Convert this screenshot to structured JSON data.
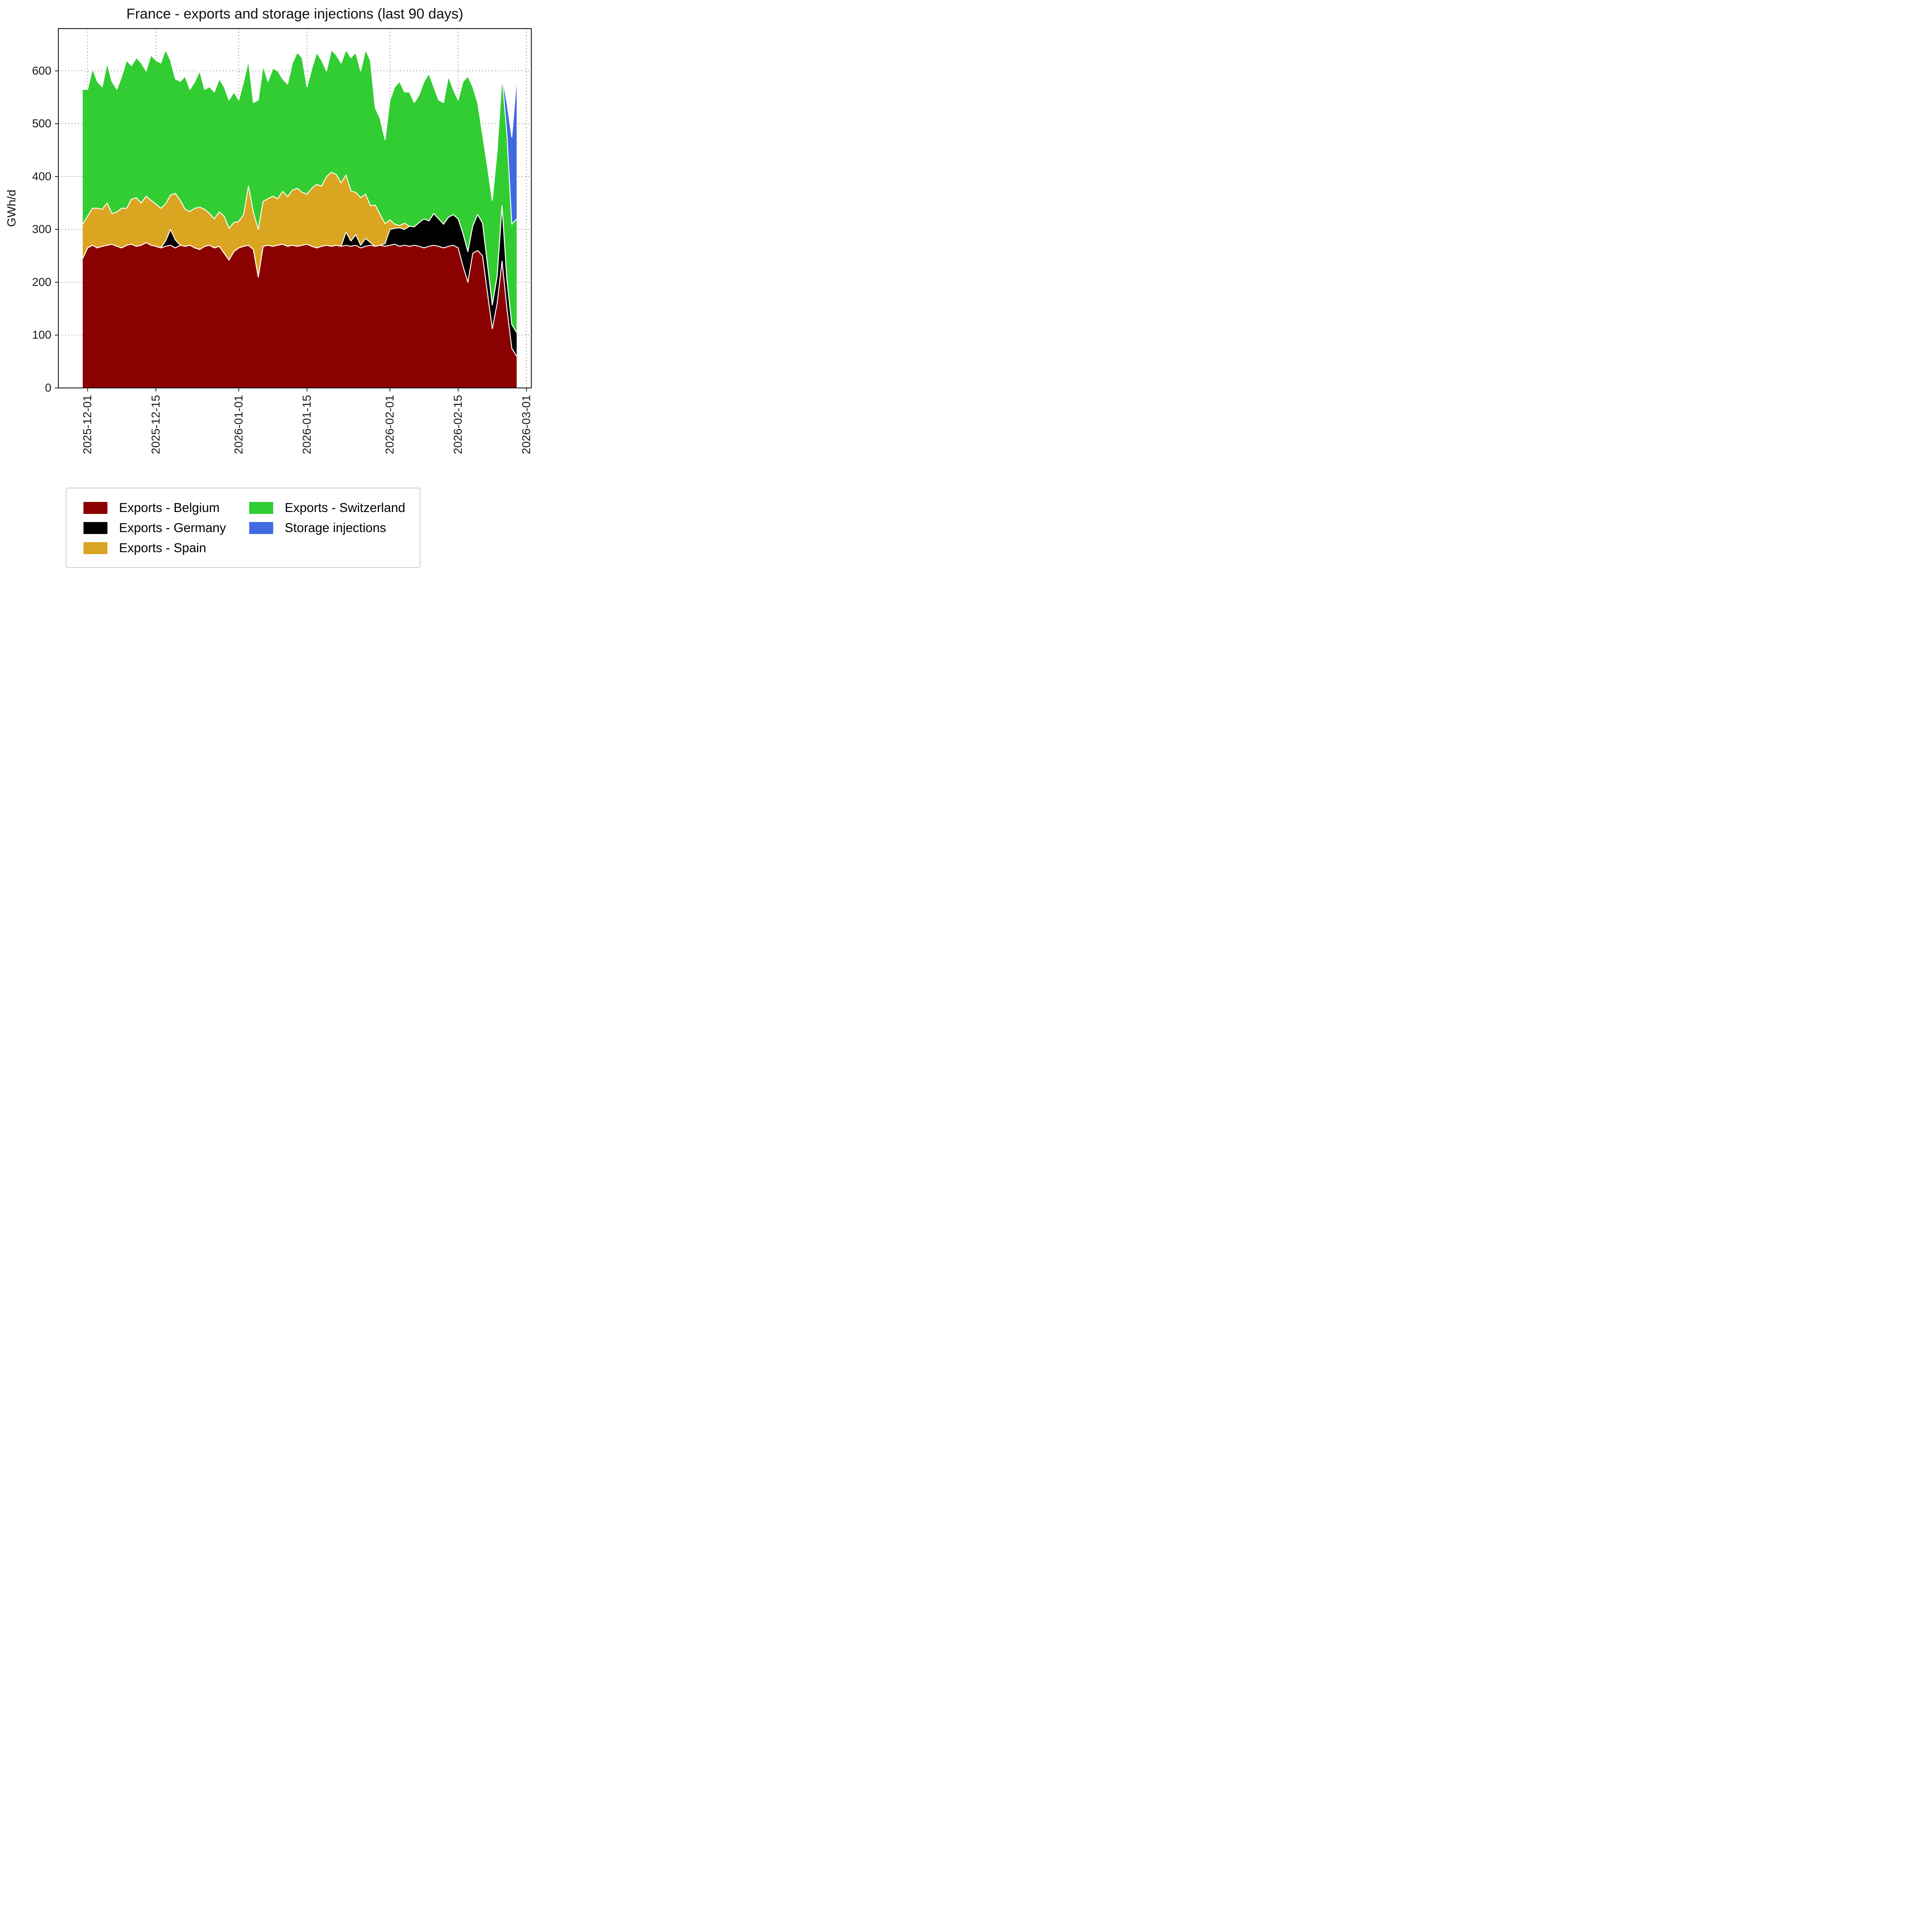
{
  "chart_data": {
    "type": "area",
    "stacked": true,
    "title": "France - exports and storage injections (last 90 days)",
    "ylabel": "GWh/d",
    "xlabel": "",
    "grid": true,
    "legend_position": "bottom",
    "ylim": [
      0,
      680
    ],
    "yticks": [
      0,
      100,
      200,
      300,
      400,
      500,
      600
    ],
    "xticks": [
      "2025-12-01",
      "2025-12-15",
      "2026-01-01",
      "2026-01-15",
      "2026-02-01",
      "2026-02-15",
      "2026-03-01"
    ],
    "x_domain_days": [
      -5,
      92
    ],
    "x": [
      "2025-11-30",
      "2025-12-01",
      "2025-12-02",
      "2025-12-03",
      "2025-12-04",
      "2025-12-05",
      "2025-12-06",
      "2025-12-07",
      "2025-12-08",
      "2025-12-09",
      "2025-12-10",
      "2025-12-11",
      "2025-12-12",
      "2025-12-13",
      "2025-12-14",
      "2025-12-15",
      "2025-12-16",
      "2025-12-17",
      "2025-12-18",
      "2025-12-19",
      "2025-12-20",
      "2025-12-21",
      "2025-12-22",
      "2025-12-23",
      "2025-12-24",
      "2025-12-25",
      "2025-12-26",
      "2025-12-27",
      "2025-12-28",
      "2025-12-29",
      "2025-12-30",
      "2025-12-31",
      "2026-01-01",
      "2026-01-02",
      "2026-01-03",
      "2026-01-04",
      "2026-01-05",
      "2026-01-06",
      "2026-01-07",
      "2026-01-08",
      "2026-01-09",
      "2026-01-10",
      "2026-01-11",
      "2026-01-12",
      "2026-01-13",
      "2026-01-14",
      "2026-01-15",
      "2026-01-16",
      "2026-01-17",
      "2026-01-18",
      "2026-01-19",
      "2026-01-20",
      "2026-01-21",
      "2026-01-22",
      "2026-01-23",
      "2026-01-24",
      "2026-01-25",
      "2026-01-26",
      "2026-01-27",
      "2026-01-28",
      "2026-01-29",
      "2026-01-30",
      "2026-01-31",
      "2026-02-01",
      "2026-02-02",
      "2026-02-03",
      "2026-02-04",
      "2026-02-05",
      "2026-02-06",
      "2026-02-07",
      "2026-02-08",
      "2026-02-09",
      "2026-02-10",
      "2026-02-11",
      "2026-02-12",
      "2026-02-13",
      "2026-02-14",
      "2026-02-15",
      "2026-02-16",
      "2026-02-17",
      "2026-02-18",
      "2026-02-19",
      "2026-02-20",
      "2026-02-21",
      "2026-02-22",
      "2026-02-23",
      "2026-02-24",
      "2026-02-25",
      "2026-02-26",
      "2026-02-27"
    ],
    "series": [
      {
        "name": "Exports - Belgium",
        "color": "#8b0000",
        "values": [
          245,
          265,
          270,
          265,
          268,
          270,
          272,
          268,
          265,
          270,
          272,
          268,
          270,
          275,
          270,
          268,
          265,
          268,
          270,
          265,
          270,
          268,
          270,
          265,
          262,
          268,
          270,
          265,
          268,
          255,
          242,
          258,
          265,
          268,
          270,
          262,
          210,
          268,
          270,
          268,
          270,
          272,
          268,
          270,
          268,
          270,
          272,
          268,
          265,
          268,
          270,
          268,
          270,
          268,
          270,
          268,
          270,
          265,
          268,
          270,
          268,
          270,
          268,
          270,
          272,
          268,
          270,
          268,
          270,
          268,
          265,
          268,
          270,
          268,
          265,
          268,
          270,
          265,
          230,
          200,
          255,
          260,
          250,
          180,
          112,
          160,
          240,
          150,
          75,
          60
        ]
      },
      {
        "name": "Exports - Germany",
        "color": "#000000",
        "values": [
          0,
          0,
          0,
          0,
          0,
          0,
          0,
          0,
          0,
          0,
          0,
          0,
          0,
          0,
          0,
          0,
          0,
          10,
          30,
          15,
          0,
          0,
          0,
          0,
          0,
          0,
          0,
          0,
          0,
          0,
          0,
          0,
          0,
          0,
          0,
          0,
          0,
          0,
          0,
          0,
          0,
          0,
          0,
          0,
          0,
          0,
          0,
          0,
          0,
          0,
          0,
          0,
          0,
          0,
          25,
          10,
          20,
          5,
          15,
          5,
          0,
          0,
          5,
          30,
          30,
          35,
          30,
          38,
          35,
          45,
          55,
          48,
          60,
          52,
          45,
          55,
          58,
          55,
          62,
          58,
          52,
          68,
          62,
          55,
          45,
          52,
          105,
          55,
          45,
          45
        ]
      },
      {
        "name": "Exports - Spain",
        "color": "#daa520",
        "values": [
          65,
          60,
          70,
          75,
          70,
          80,
          58,
          65,
          75,
          70,
          85,
          92,
          80,
          88,
          85,
          80,
          75,
          70,
          65,
          88,
          85,
          70,
          64,
          75,
          80,
          70,
          60,
          55,
          65,
          70,
          60,
          55,
          50,
          60,
          112,
          70,
          90,
          85,
          88,
          95,
          88,
          100,
          94,
          104,
          110,
          100,
          95,
          110,
          120,
          114,
          130,
          140,
          134,
          120,
          108,
          95,
          80,
          90,
          84,
          70,
          78,
          58,
          38,
          18,
          8,
          4,
          12,
          0,
          0,
          0,
          0,
          0,
          0,
          0,
          0,
          0,
          0,
          0,
          0,
          0,
          0,
          0,
          0,
          0,
          0,
          0,
          0,
          0,
          0,
          0
        ]
      },
      {
        "name": "Exports - Switzerland",
        "color": "#32cd32",
        "values": [
          255,
          240,
          265,
          240,
          232,
          265,
          250,
          232,
          250,
          280,
          253,
          265,
          265,
          237,
          275,
          272,
          275,
          292,
          255,
          217,
          225,
          252,
          231,
          240,
          258,
          227,
          240,
          240,
          252,
          245,
          243,
          247,
          230,
          252,
          238,
          208,
          245,
          257,
          222,
          242,
          242,
          213,
          213,
          241,
          257,
          255,
          203,
          227,
          250,
          238,
          200,
          232,
          226,
          227,
          237,
          252,
          265,
          240,
          273,
          275,
          184,
          182,
          159,
          227,
          260,
          273,
          248,
          254,
          235,
          242,
          260,
          279,
          240,
          225,
          230,
          267,
          237,
          225,
          288,
          332,
          263,
          212,
          168,
          185,
          198,
          238,
          245,
          275,
          190,
          215
        ]
      },
      {
        "name": "Storage injections",
        "color": "#4169e1",
        "values": [
          0,
          0,
          0,
          0,
          0,
          0,
          0,
          0,
          0,
          0,
          0,
          0,
          0,
          0,
          0,
          0,
          0,
          0,
          0,
          0,
          0,
          0,
          0,
          0,
          0,
          0,
          0,
          0,
          0,
          0,
          0,
          0,
          0,
          0,
          0,
          0,
          0,
          0,
          0,
          0,
          0,
          0,
          0,
          0,
          0,
          0,
          0,
          0,
          0,
          0,
          0,
          0,
          0,
          0,
          0,
          0,
          0,
          0,
          0,
          0,
          0,
          0,
          0,
          0,
          0,
          0,
          0,
          0,
          0,
          0,
          0,
          0,
          0,
          0,
          0,
          0,
          0,
          0,
          0,
          0,
          0,
          0,
          0,
          0,
          0,
          0,
          0,
          60,
          165,
          265
        ]
      }
    ]
  }
}
